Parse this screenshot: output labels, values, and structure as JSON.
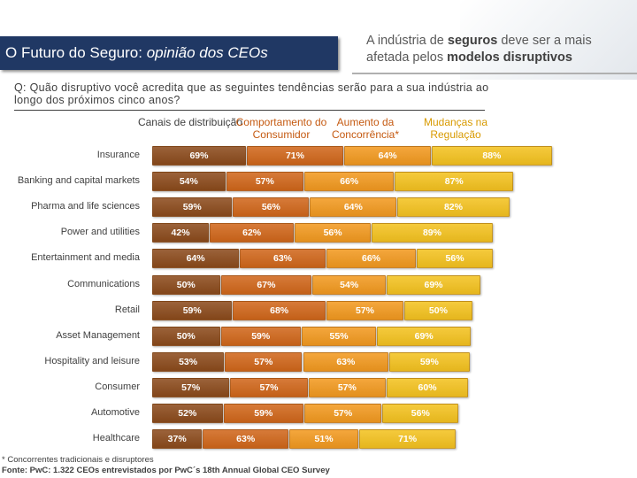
{
  "header": {
    "title_main": "O Futuro do Seguro: ",
    "title_italic": "opinião dos CEOs",
    "headline_part1": "A indústria de ",
    "headline_bold1": "seguros",
    "headline_part2": " deve ser a mais afetada pelos ",
    "headline_bold2": "modelos disruptivos"
  },
  "question": "Q: Quão disruptivo você acredita que as seguintes tendências serão para a sua indústria ao longo dos próximos cinco anos?",
  "chart_data": {
    "type": "bar",
    "stacked": true,
    "categories": [
      "Insurance",
      "Banking and capital markets",
      "Pharma and life sciences",
      "Power and utilities",
      "Entertainment and media",
      "Communications",
      "Retail",
      "Asset Management",
      "Hospitality and leisure",
      "Consumer",
      "Automotive",
      "Healthcare"
    ],
    "series": [
      {
        "name": "Canais de distribuição",
        "color": "#8B4A1B",
        "values": [
          69,
          54,
          59,
          42,
          64,
          50,
          59,
          50,
          53,
          57,
          52,
          37
        ]
      },
      {
        "name": "Comportamento do Consumidor",
        "color": "#D0661A",
        "values": [
          71,
          57,
          56,
          62,
          63,
          67,
          68,
          59,
          57,
          57,
          59,
          63
        ]
      },
      {
        "name": "Aumento da Concorrência*",
        "color": "#F2991F",
        "values": [
          64,
          66,
          64,
          56,
          66,
          54,
          57,
          55,
          63,
          57,
          57,
          51
        ]
      },
      {
        "name": "Mudanças na Regulação",
        "color": "#F4C21F",
        "values": [
          88,
          87,
          82,
          89,
          56,
          69,
          50,
          69,
          59,
          60,
          56,
          71
        ]
      }
    ],
    "header_colors": [
      "#404040",
      "#C55A11",
      "#C55A11",
      "#D89A00"
    ]
  },
  "footnote": {
    "line1": "* Concorrentes tradicionais e disruptores",
    "line2_bold": "Fonte: PwC: 1.322 CEOs entrevistados por PwC´s 18th Annual Global CEO Survey"
  }
}
